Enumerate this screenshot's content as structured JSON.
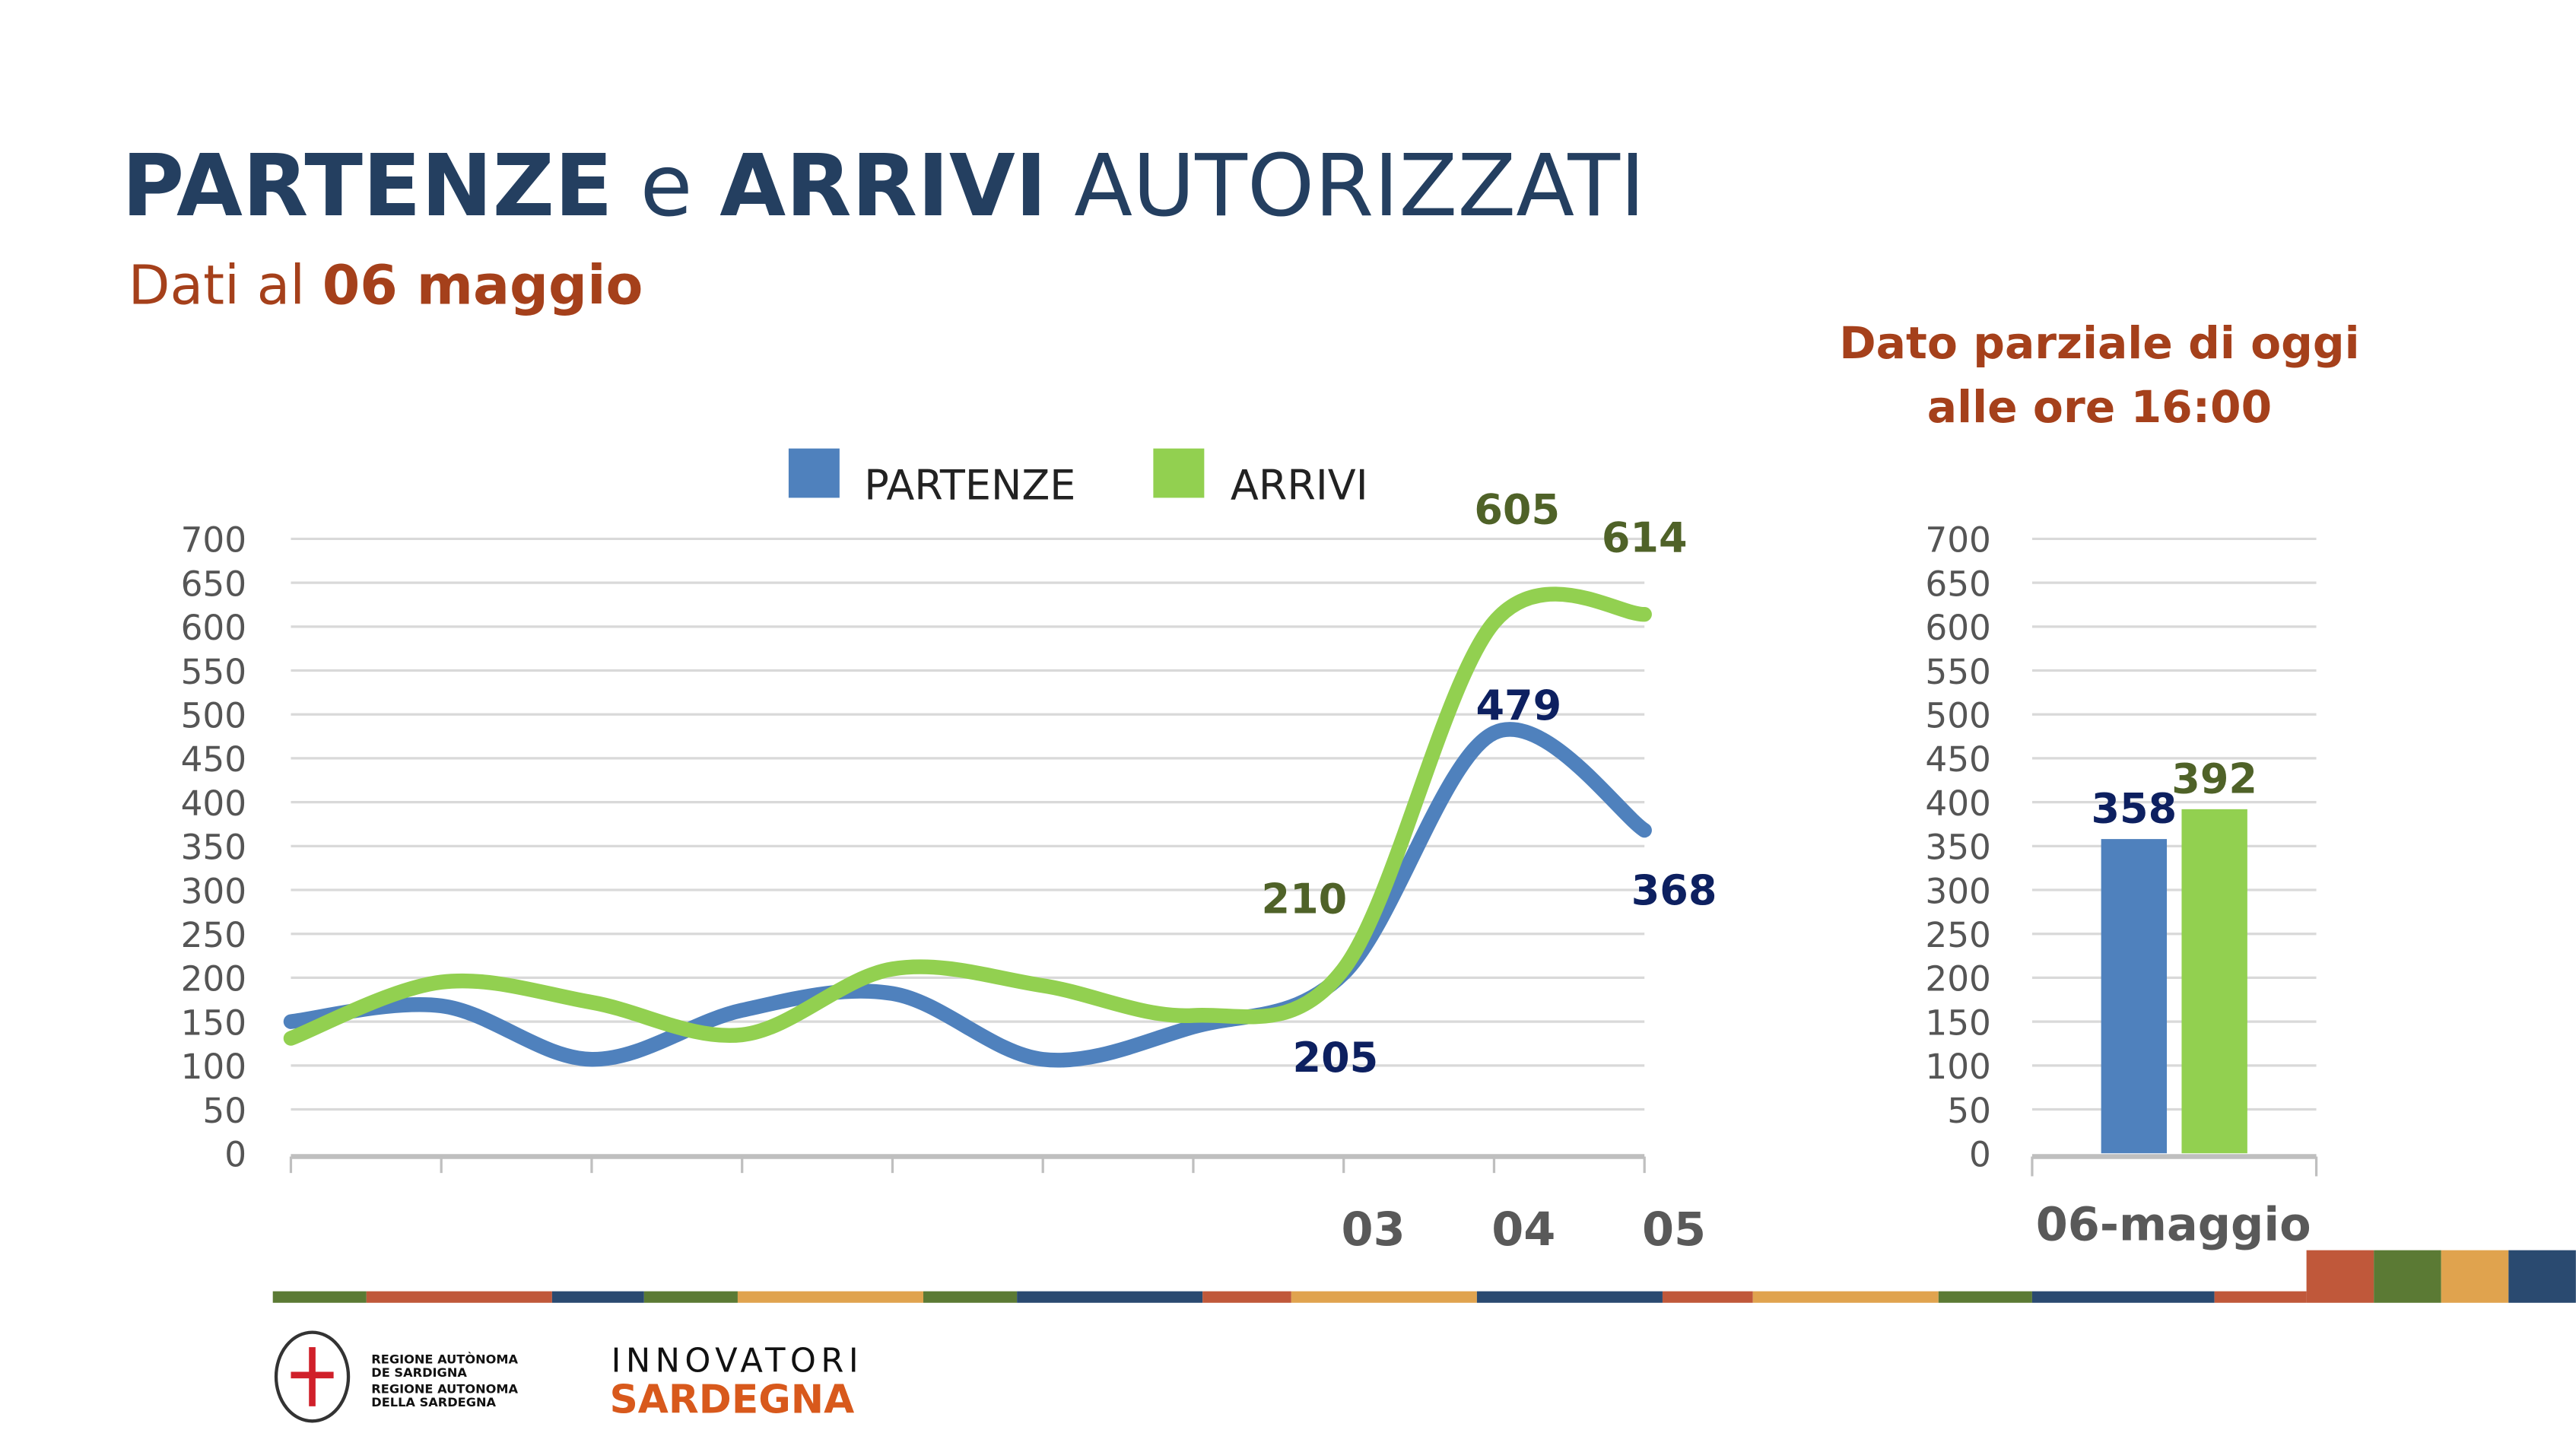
{
  "title": {
    "bold1": "PARTENZE",
    "mid": " e ",
    "bold2": "ARRIVI",
    "rest": " AUTORIZZATI"
  },
  "subtitle": {
    "prefix": "Dati al ",
    "bold": "06 maggio"
  },
  "partial_note": [
    "Dato parziale di oggi",
    "alle ore 16:00"
  ],
  "colors": {
    "partenze": "#4f81bd",
    "arrivi": "#92d050",
    "title": "#243f60",
    "accent": "#a5401b",
    "label_blue": "#0d2060",
    "label_green": "#4f6228"
  },
  "logos": {
    "region": [
      "REGIONE AUTÒNOMA",
      "DE SARDIGNA",
      "REGIONE AUTONOMA",
      "DELLA SARDEGNA"
    ],
    "innovatori_top": "INNOVATORI",
    "innovatori_bottom": "SARDEGNA"
  },
  "chart_data": [
    {
      "type": "line",
      "title": "",
      "legend": [
        "PARTENZE",
        "ARRIVI"
      ],
      "legend_position": "top",
      "categories": [
        "",
        "",
        "",
        "",
        "",
        "",
        "",
        "03",
        "04",
        "05"
      ],
      "series": [
        {
          "name": "PARTENZE",
          "values": [
            150,
            168,
            107,
            163,
            182,
            107,
            144,
            205,
            479,
            368
          ],
          "labels": [
            "",
            "",
            "",
            "",
            "",
            "",
            "",
            "205",
            "479",
            "368"
          ]
        },
        {
          "name": "ARRIVI",
          "values": [
            131,
            195,
            172,
            135,
            210,
            191,
            157,
            210,
            605,
            614
          ],
          "labels": [
            "",
            "",
            "",
            "",
            "",
            "",
            "",
            "210",
            "605",
            "614"
          ]
        }
      ],
      "yticks": [
        "0",
        "50",
        "100",
        "150",
        "200",
        "250",
        "300",
        "350",
        "400",
        "450",
        "500",
        "550",
        "600",
        "650",
        "700"
      ],
      "ylim": [
        0,
        700
      ],
      "grid": true,
      "smooth": true
    },
    {
      "type": "bar",
      "categories": [
        "06-maggio"
      ],
      "series": [
        {
          "name": "PARTENZE",
          "values": [
            358
          ],
          "labels": [
            "358"
          ]
        },
        {
          "name": "ARRIVI",
          "values": [
            392
          ],
          "labels": [
            "392"
          ]
        }
      ],
      "yticks": [
        "0",
        "50",
        "100",
        "150",
        "200",
        "250",
        "300",
        "350",
        "400",
        "450",
        "500",
        "550",
        "600",
        "650",
        "700"
      ],
      "ylim": [
        0,
        700
      ],
      "grid": true
    }
  ]
}
